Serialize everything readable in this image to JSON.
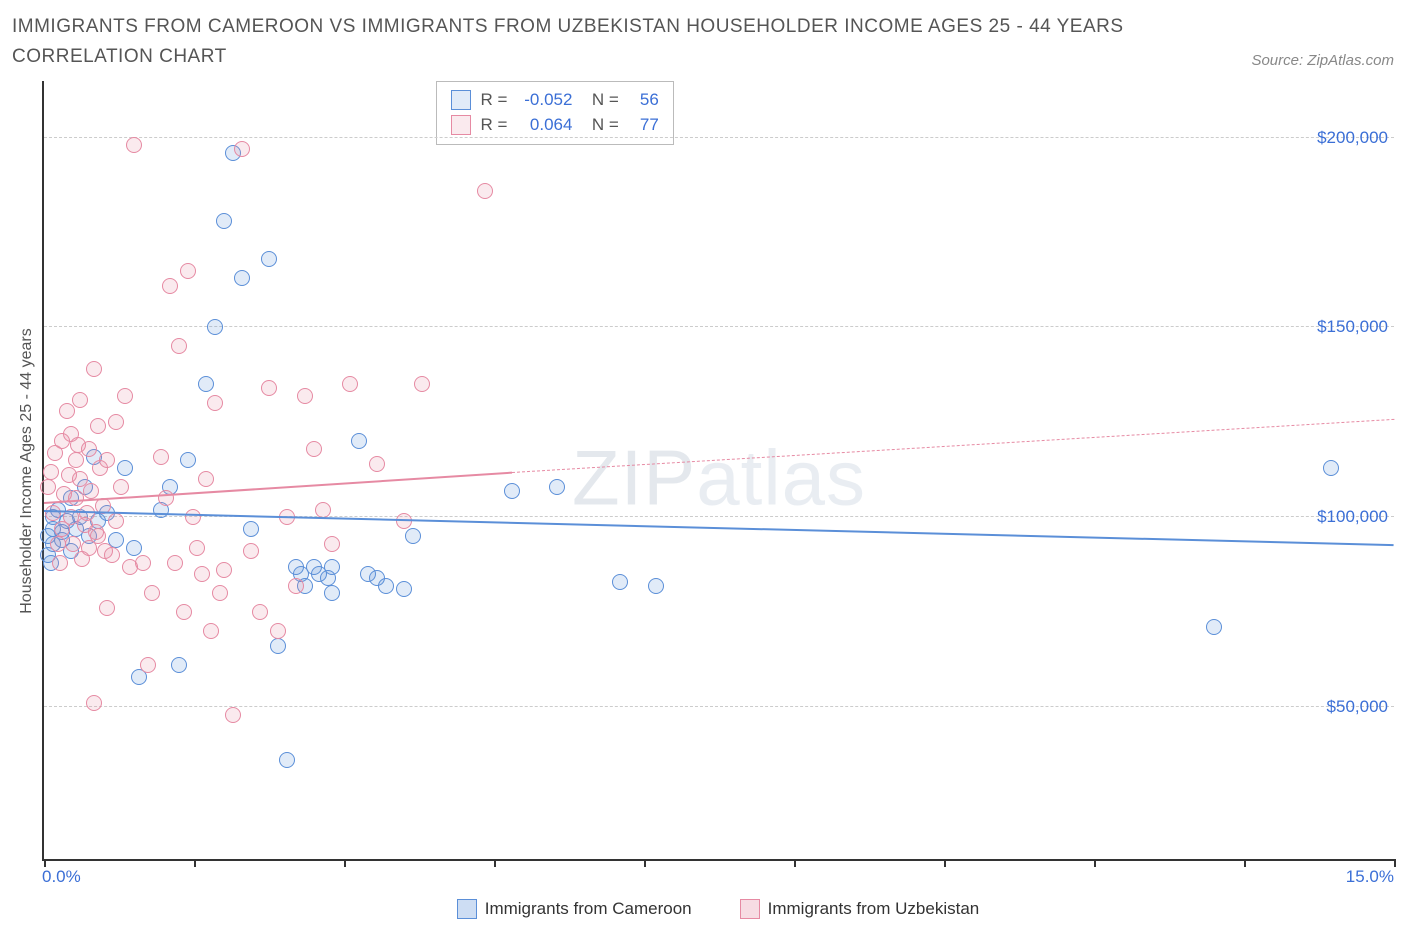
{
  "title": "IMMIGRANTS FROM CAMEROON VS IMMIGRANTS FROM UZBEKISTAN HOUSEHOLDER INCOME AGES 25 - 44 YEARS CORRELATION CHART",
  "source": "Source: ZipAtlas.com",
  "ylabel": "Householder Income Ages 25 - 44 years",
  "watermark": "ZIPatlas",
  "chart": {
    "type": "scatter",
    "xlim": [
      0,
      15
    ],
    "ylim": [
      10000,
      215000
    ],
    "x_tick_positions": [
      0,
      1.67,
      3.33,
      5.0,
      6.67,
      8.33,
      10.0,
      11.67,
      13.33,
      15.0
    ],
    "x_tick_labels": {
      "0": "0.0%",
      "15": "15.0%"
    },
    "y_gridlines": [
      50000,
      100000,
      150000,
      200000
    ],
    "y_tick_labels": [
      "$50,000",
      "$100,000",
      "$150,000",
      "$200,000"
    ],
    "background_color": "#ffffff",
    "grid_color": "#cccccc",
    "grid_dash": "3,3",
    "axis_color": "#333333",
    "label_color": "#3b6fd6",
    "marker_radius": 8,
    "marker_fill_opacity": 0.15,
    "marker_stroke_width": 1.5
  },
  "series": [
    {
      "name": "Immigrants from Cameroon",
      "color": "#5b8fd8",
      "fill": "rgba(91,143,216,0.18)",
      "stats": {
        "R": "-0.052",
        "N": "56"
      },
      "trend": {
        "x1": 0,
        "y1": 102000,
        "x2": 15,
        "y2": 93000,
        "width": 2.5,
        "dash": "none"
      },
      "trend_dashed_ext": null,
      "points": [
        [
          0.05,
          95000
        ],
        [
          0.1,
          97000
        ],
        [
          0.1,
          93000
        ],
        [
          0.1,
          100000
        ],
        [
          0.2,
          96000
        ],
        [
          0.15,
          102000
        ],
        [
          0.2,
          94000
        ],
        [
          0.25,
          99000
        ],
        [
          0.3,
          105000
        ],
        [
          0.3,
          91000
        ],
        [
          0.35,
          97000
        ],
        [
          0.4,
          100000
        ],
        [
          0.45,
          108000
        ],
        [
          0.5,
          95000
        ],
        [
          0.55,
          116000
        ],
        [
          0.6,
          99000
        ],
        [
          0.7,
          101000
        ],
        [
          0.8,
          94000
        ],
        [
          0.9,
          113000
        ],
        [
          1.0,
          92000
        ],
        [
          1.05,
          58000
        ],
        [
          1.3,
          102000
        ],
        [
          1.4,
          108000
        ],
        [
          1.5,
          61000
        ],
        [
          1.6,
          115000
        ],
        [
          1.8,
          135000
        ],
        [
          1.9,
          150000
        ],
        [
          2.0,
          178000
        ],
        [
          2.1,
          196000
        ],
        [
          2.2,
          163000
        ],
        [
          2.3,
          97000
        ],
        [
          2.5,
          168000
        ],
        [
          2.6,
          66000
        ],
        [
          2.8,
          87000
        ],
        [
          2.85,
          85000
        ],
        [
          2.9,
          82000
        ],
        [
          2.7,
          36000
        ],
        [
          3.0,
          87000
        ],
        [
          3.05,
          85000
        ],
        [
          3.15,
          84000
        ],
        [
          3.2,
          80000
        ],
        [
          3.2,
          87000
        ],
        [
          3.5,
          120000
        ],
        [
          3.6,
          85000
        ],
        [
          3.7,
          84000
        ],
        [
          3.8,
          82000
        ],
        [
          4.0,
          81000
        ],
        [
          4.1,
          95000
        ],
        [
          5.2,
          107000
        ],
        [
          5.7,
          108000
        ],
        [
          6.4,
          83000
        ],
        [
          6.8,
          82000
        ],
        [
          13.0,
          71000
        ],
        [
          14.3,
          113000
        ],
        [
          0.05,
          90000
        ],
        [
          0.08,
          88000
        ]
      ]
    },
    {
      "name": "Immigrants from Uzbekistan",
      "color": "#e68aa3",
      "fill": "rgba(230,138,163,0.18)",
      "stats": {
        "R": "0.064",
        "N": "77"
      },
      "trend": {
        "x1": 0,
        "y1": 104000,
        "x2": 5.2,
        "y2": 112000,
        "width": 2.5,
        "dash": "none"
      },
      "trend_dashed_ext": {
        "x1": 5.2,
        "y1": 112000,
        "x2": 15,
        "y2": 126000,
        "width": 1.5,
        "dash": "5,5"
      },
      "points": [
        [
          0.1,
          101000
        ],
        [
          0.15,
          93000
        ],
        [
          0.2,
          120000
        ],
        [
          0.2,
          97000
        ],
        [
          0.25,
          128000
        ],
        [
          0.3,
          122000
        ],
        [
          0.3,
          100000
        ],
        [
          0.35,
          115000
        ],
        [
          0.35,
          105000
        ],
        [
          0.4,
          131000
        ],
        [
          0.4,
          110000
        ],
        [
          0.45,
          98000
        ],
        [
          0.5,
          92000
        ],
        [
          0.5,
          118000
        ],
        [
          0.55,
          139000
        ],
        [
          0.6,
          95000
        ],
        [
          0.6,
          124000
        ],
        [
          0.65,
          103000
        ],
        [
          0.7,
          115000
        ],
        [
          0.75,
          90000
        ],
        [
          0.8,
          125000
        ],
        [
          0.8,
          99000
        ],
        [
          0.85,
          108000
        ],
        [
          0.9,
          132000
        ],
        [
          0.95,
          87000
        ],
        [
          1.0,
          198000
        ],
        [
          1.1,
          88000
        ],
        [
          1.15,
          61000
        ],
        [
          1.2,
          80000
        ],
        [
          1.3,
          116000
        ],
        [
          1.35,
          105000
        ],
        [
          1.4,
          161000
        ],
        [
          1.45,
          88000
        ],
        [
          1.5,
          145000
        ],
        [
          1.55,
          75000
        ],
        [
          1.6,
          165000
        ],
        [
          1.65,
          100000
        ],
        [
          1.7,
          92000
        ],
        [
          1.75,
          85000
        ],
        [
          1.8,
          110000
        ],
        [
          1.85,
          70000
        ],
        [
          1.9,
          130000
        ],
        [
          1.95,
          80000
        ],
        [
          2.0,
          86000
        ],
        [
          2.1,
          48000
        ],
        [
          2.2,
          197000
        ],
        [
          2.3,
          91000
        ],
        [
          2.4,
          75000
        ],
        [
          2.5,
          134000
        ],
        [
          2.6,
          70000
        ],
        [
          2.7,
          100000
        ],
        [
          2.8,
          82000
        ],
        [
          2.9,
          132000
        ],
        [
          3.0,
          118000
        ],
        [
          3.1,
          102000
        ],
        [
          3.2,
          93000
        ],
        [
          3.4,
          135000
        ],
        [
          3.7,
          114000
        ],
        [
          4.0,
          99000
        ],
        [
          4.2,
          135000
        ],
        [
          4.9,
          186000
        ],
        [
          0.55,
          51000
        ],
        [
          0.7,
          76000
        ],
        [
          0.05,
          108000
        ],
        [
          0.08,
          112000
        ],
        [
          0.12,
          117000
        ],
        [
          0.18,
          88000
        ],
        [
          0.22,
          106000
        ],
        [
          0.28,
          111000
        ],
        [
          0.32,
          93000
        ],
        [
          0.38,
          119000
        ],
        [
          0.42,
          89000
        ],
        [
          0.48,
          101000
        ],
        [
          0.52,
          107000
        ],
        [
          0.58,
          96000
        ],
        [
          0.62,
          113000
        ],
        [
          0.68,
          91000
        ]
      ]
    }
  ],
  "bottom_legend": [
    {
      "label": "Immigrants from Cameroon",
      "color": "#5b8fd8",
      "fill": "rgba(91,143,216,0.3)"
    },
    {
      "label": "Immigrants from Uzbekistan",
      "color": "#e68aa3",
      "fill": "rgba(230,138,163,0.3)"
    }
  ]
}
